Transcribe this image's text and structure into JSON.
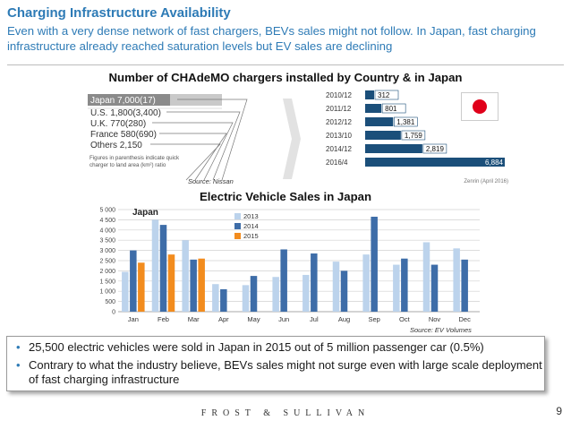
{
  "header": {
    "title": "Charging Infrastructure Availability",
    "subtitle": "Even with a very dense network of fast chargers, BEVs sales might not follow. In Japan,  fast charging infrastructure already reached saturation levels but EV sales are declining"
  },
  "chademo": {
    "heading": "Number of CHAdeMO chargers installed by Country & in Japan",
    "left_rows": [
      {
        "label": "Japan 7,000(17)"
      },
      {
        "label": "U.S. 1,800(3,400)"
      },
      {
        "label": "U.K. 770(280)"
      },
      {
        "label": "France 580(690)"
      },
      {
        "label": "Others 2,150"
      }
    ],
    "left_note": "Figures in parenthesis indicate quick charger to land area (km²) ratio",
    "japan_years": [
      "2010/12",
      "2011/12",
      "2012/12",
      "2013/10",
      "2014/12",
      "2016/4"
    ],
    "japan_values": [
      312,
      801,
      1381,
      1759,
      2819,
      6884
    ],
    "japan_value_labels": [
      "312",
      "801",
      "1,381",
      "1,759",
      "2,819",
      "6,884"
    ],
    "right_note": "Zenrin (April 2016)",
    "source": "Source: Nissan"
  },
  "sales": {
    "heading": "Electric Vehicle Sales in Japan",
    "source": "Source: EV Volumes"
  },
  "chart_data": {
    "type": "bar",
    "title": "Japan",
    "categories": [
      "Jan",
      "Feb",
      "Mar",
      "Apr",
      "May",
      "Jun",
      "Jul",
      "Aug",
      "Sep",
      "Oct",
      "Nov",
      "Dec"
    ],
    "series": [
      {
        "name": "2013",
        "color": "#bcd3ec",
        "values": [
          1950,
          4500,
          3500,
          1350,
          1300,
          1700,
          1800,
          2450,
          2800,
          2300,
          3400,
          3100
        ]
      },
      {
        "name": "2014",
        "color": "#3e6da8",
        "values": [
          3000,
          4250,
          2550,
          1100,
          1750,
          3050,
          2850,
          2000,
          4650,
          2600,
          2300,
          2550
        ]
      },
      {
        "name": "2015",
        "color": "#f28c1e",
        "values": [
          2400,
          2800,
          2600,
          null,
          null,
          null,
          null,
          null,
          null,
          null,
          null,
          null
        ]
      }
    ],
    "yticks": [
      "0",
      "500",
      "1 000",
      "1 500",
      "2 000",
      "2 500",
      "3 000",
      "3 500",
      "4 000",
      "4 500",
      "5 000"
    ],
    "ylim": [
      0,
      5000
    ],
    "grid": true,
    "legend": "top-right"
  },
  "bullets": [
    "25,500 electric vehicles were sold in Japan in 2015 out of 5 million passenger car (0.5%)",
    "Contrary to what the industry believe, BEVs sales might not surge even with large scale deployment of fast charging infrastructure"
  ],
  "footer": {
    "brand": "FROST & SULLIVAN",
    "page": "9"
  },
  "colors": {
    "accent": "#2e7bb6",
    "bar_dark": "#1b4f7a"
  }
}
